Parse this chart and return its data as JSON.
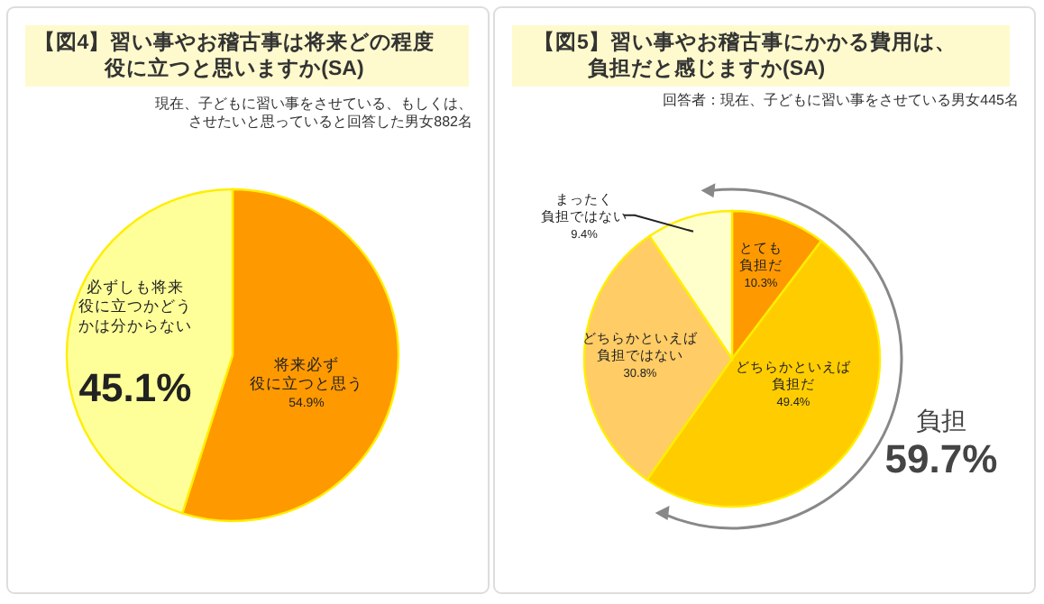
{
  "chart_data": [
    {
      "type": "pie",
      "title": "【図4】習い事やお稽古事は将来どの程度役に立つと思いますか(SA)",
      "subtitle": "現在、子どもに習い事をさせている、もしくは、させたいと思っていると回答した男女882名",
      "categories": [
        "将来必ず役に立つと思う",
        "必ずしも将来役に立つかどうかは分からない"
      ],
      "values": [
        54.9,
        45.1
      ],
      "value_labels": [
        "54.9%",
        "45.1%"
      ],
      "colors": [
        "#ff9900",
        "#ffff99"
      ]
    },
    {
      "type": "pie",
      "title": "【図5】習い事やお稽古事にかかる費用は、負担だと感じますか(SA)",
      "subtitle": "回答者：現在、子どもに習い事をさせている男女445名",
      "categories": [
        "とても負担だ",
        "どちらかといえば負担だ",
        "どちらかといえば負担ではない",
        "まったく負担ではない"
      ],
      "values": [
        10.3,
        49.4,
        30.8,
        9.4
      ],
      "value_labels": [
        "10.3%",
        "49.4%",
        "30.8%",
        "9.4%"
      ],
      "colors": [
        "#ff9900",
        "#ffcc00",
        "#ffcc66",
        "#ffffcc"
      ],
      "annotations": [
        "負担",
        "59.7%"
      ]
    }
  ]
}
